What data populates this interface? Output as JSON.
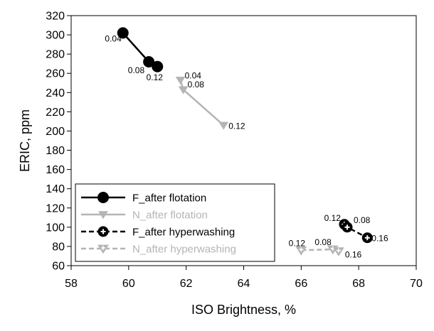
{
  "chart_data": {
    "type": "scatter",
    "title": "",
    "xlabel": "ISO Brightness, %",
    "ylabel": "ERIC, ppm",
    "xlim": [
      58,
      70
    ],
    "ylim": [
      60,
      320
    ],
    "xticks": [
      58,
      60,
      62,
      64,
      66,
      68,
      70
    ],
    "yticks": [
      60,
      80,
      100,
      120,
      140,
      160,
      180,
      200,
      220,
      240,
      260,
      280,
      300,
      320
    ],
    "grid": false,
    "legend_position": "bottom-left",
    "series": [
      {
        "name": "F_after flotation",
        "color": "#000000",
        "marker": "filled-circle",
        "line": "solid",
        "points": [
          {
            "x": 59.8,
            "y": 302,
            "label": "0.04"
          },
          {
            "x": 60.7,
            "y": 272,
            "label": "0.08"
          },
          {
            "x": 61.0,
            "y": 267,
            "label": "0.12"
          }
        ]
      },
      {
        "name": "N_after flotation",
        "color": "#b4b4b4",
        "marker": "filled-triangle-down",
        "line": "solid",
        "points": [
          {
            "x": 61.8,
            "y": 253,
            "label": "0.04"
          },
          {
            "x": 61.9,
            "y": 243,
            "label": "0.08"
          },
          {
            "x": 63.3,
            "y": 206,
            "label": "0.12"
          }
        ]
      },
      {
        "name": "F_after hyperwashing",
        "color": "#000000",
        "marker": "crosshair-circle",
        "line": "dashed",
        "points": [
          {
            "x": 67.5,
            "y": 103,
            "label": "0.12"
          },
          {
            "x": 67.6,
            "y": 100,
            "label": "0.08"
          },
          {
            "x": 68.3,
            "y": 89,
            "label": "0.16"
          }
        ]
      },
      {
        "name": "N_after hyperwashing",
        "color": "#b4b4b4",
        "marker": "crosshair-triangle-down",
        "line": "dashed",
        "points": [
          {
            "x": 66.0,
            "y": 76,
            "label": "0.12"
          },
          {
            "x": 67.1,
            "y": 77,
            "label": "0.08"
          },
          {
            "x": 67.3,
            "y": 75,
            "label": "0.16"
          }
        ]
      }
    ]
  }
}
